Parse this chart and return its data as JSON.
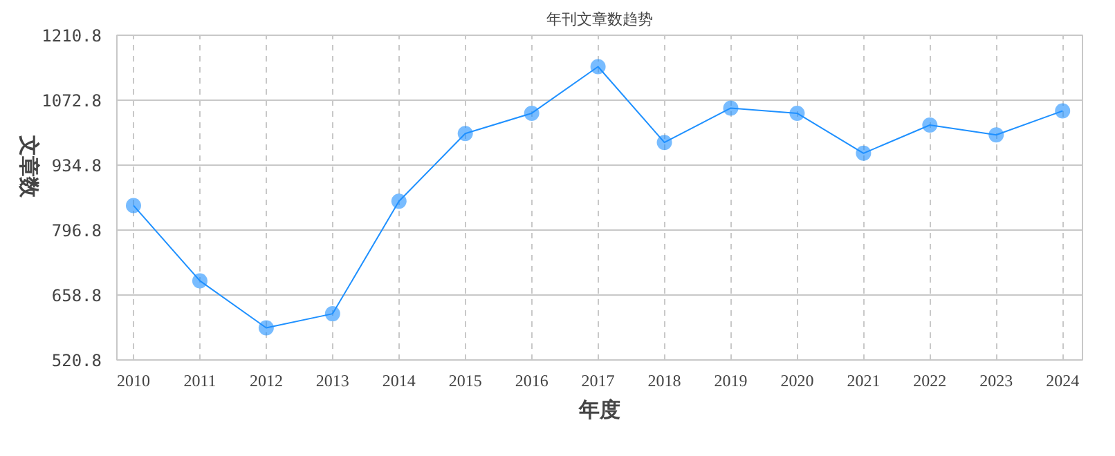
{
  "chart_data": {
    "type": "line",
    "title": "年刊文章数趋势",
    "xlabel": "年度",
    "ylabel": "文章数",
    "categories": [
      "2010",
      "2011",
      "2012",
      "2013",
      "2014",
      "2015",
      "2016",
      "2017",
      "2018",
      "2019",
      "2020",
      "2021",
      "2022",
      "2023",
      "2024"
    ],
    "series": [
      {
        "color": "#1e90ff",
        "values": [
          849,
          689,
          589,
          619,
          858,
          1002,
          1045,
          1144,
          983,
          1056,
          1045,
          960,
          1020,
          999,
          1050
        ]
      }
    ],
    "ylim": [
      520.8,
      1210.8
    ],
    "yticks": [
      520.8,
      658.8,
      796.8,
      934.8,
      1072.8,
      1210.8
    ],
    "grid": true,
    "marker": "circle",
    "line_style": "solid"
  }
}
